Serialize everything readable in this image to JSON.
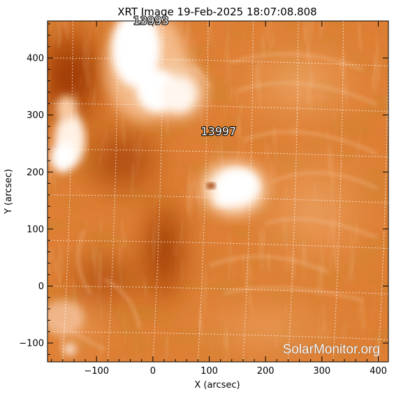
{
  "title": "XRT Image 19-Feb-2025 18:07:08.808",
  "x_label": "X (arcsec)",
  "y_label": "Y (arcsec)",
  "x_range": [
    -187,
    418
  ],
  "y_range": [
    -133,
    465
  ],
  "x_ticks": [
    -100,
    0,
    100,
    200,
    300,
    400
  ],
  "y_ticks": [
    -100,
    0,
    100,
    200,
    300,
    400
  ],
  "grid_spacing_arcsec": 80,
  "grid": true,
  "regions": [
    {
      "id": "13993",
      "x": -35,
      "y": 465
    },
    {
      "id": "13997",
      "x": 85,
      "y": 271
    }
  ],
  "watermark": "SolarMonitor.org",
  "colors": {
    "colormap": "hinode-xrt",
    "axis": "#000000",
    "grid": "#ffffff"
  }
}
